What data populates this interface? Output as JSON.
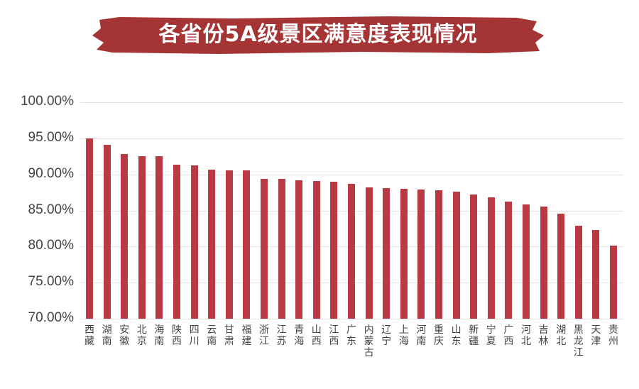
{
  "chart_data": {
    "type": "bar",
    "title": "各省份5A级景区满意度表现情况",
    "xlabel": "",
    "ylabel": "",
    "ylim": [
      70,
      100
    ],
    "yticks": [
      "100.00%",
      "95.00%",
      "90.00%",
      "85.00%",
      "80.00%",
      "75.00%",
      "70.00%"
    ],
    "grid": true,
    "legend": null,
    "bar_color": "#b83a42",
    "banner_color": "#a53434",
    "categories": [
      "西藏",
      "湖南",
      "安徽",
      "北京",
      "海南",
      "陕西",
      "四川",
      "云南",
      "甘肃",
      "福建",
      "浙江",
      "江苏",
      "青海",
      "山西",
      "江西",
      "广东",
      "内蒙古",
      "辽宁",
      "上海",
      "河南",
      "重庆",
      "山东",
      "新疆",
      "宁夏",
      "广西",
      "河北",
      "吉林",
      "湖北",
      "黑龙江",
      "天津",
      "贵州"
    ],
    "values": [
      95.0,
      94.1,
      92.8,
      92.5,
      92.5,
      91.3,
      91.2,
      90.7,
      90.6,
      90.6,
      89.4,
      89.4,
      89.2,
      89.1,
      89.0,
      88.7,
      88.2,
      88.1,
      88.0,
      87.9,
      87.8,
      87.6,
      87.2,
      86.8,
      86.2,
      85.8,
      85.5,
      84.6,
      82.9,
      82.3,
      80.1
    ],
    "unit": "%"
  }
}
